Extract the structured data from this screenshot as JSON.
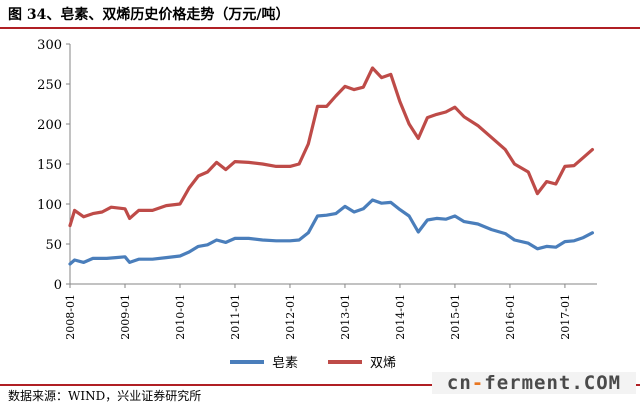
{
  "header": {
    "title": "图 34、皂素、双烯历史价格走势（万元/吨）"
  },
  "footer": {
    "source": "数据来源：WIND，兴业证券研究所"
  },
  "watermark": {
    "part1": "cn",
    "dash": "-",
    "part2": "ferment.COM"
  },
  "colors": {
    "rule": "#b01f24",
    "series_blue": "#4a7ebb",
    "series_red": "#be4b48"
  },
  "chart_data": {
    "type": "line",
    "title": "",
    "xlabel": "",
    "ylabel": "",
    "x_ticks": [
      "2008-01",
      "2009-01",
      "2010-01",
      "2011-01",
      "2012-01",
      "2013-01",
      "2014-01",
      "2015-01",
      "2016-01",
      "2017-01"
    ],
    "y_ticks": [
      "0",
      "50",
      "100",
      "150",
      "200",
      "250",
      "300"
    ],
    "ylim": [
      0,
      300
    ],
    "x_range": [
      "2008-01",
      "2017-08"
    ],
    "grid": false,
    "legend_position": "bottom",
    "series": [
      {
        "name": "皂素",
        "color": "#4a7ebb",
        "points": [
          [
            "2008-01",
            25
          ],
          [
            "2008-02",
            30
          ],
          [
            "2008-04",
            27
          ],
          [
            "2008-06",
            32
          ],
          [
            "2008-09",
            32
          ],
          [
            "2008-11",
            33
          ],
          [
            "2009-01",
            34
          ],
          [
            "2009-02",
            27
          ],
          [
            "2009-04",
            31
          ],
          [
            "2009-07",
            31
          ],
          [
            "2009-10",
            33
          ],
          [
            "2010-01",
            35
          ],
          [
            "2010-03",
            40
          ],
          [
            "2010-05",
            47
          ],
          [
            "2010-07",
            49
          ],
          [
            "2010-09",
            55
          ],
          [
            "2010-11",
            52
          ],
          [
            "2011-01",
            57
          ],
          [
            "2011-04",
            57
          ],
          [
            "2011-07",
            55
          ],
          [
            "2011-10",
            54
          ],
          [
            "2012-01",
            54
          ],
          [
            "2012-03",
            55
          ],
          [
            "2012-05",
            64
          ],
          [
            "2012-07",
            85
          ],
          [
            "2012-09",
            86
          ],
          [
            "2012-11",
            88
          ],
          [
            "2013-01",
            97
          ],
          [
            "2013-03",
            90
          ],
          [
            "2013-05",
            94
          ],
          [
            "2013-07",
            105
          ],
          [
            "2013-09",
            101
          ],
          [
            "2013-11",
            102
          ],
          [
            "2014-01",
            93
          ],
          [
            "2014-03",
            85
          ],
          [
            "2014-05",
            65
          ],
          [
            "2014-07",
            80
          ],
          [
            "2014-09",
            82
          ],
          [
            "2014-11",
            81
          ],
          [
            "2015-01",
            85
          ],
          [
            "2015-03",
            78
          ],
          [
            "2015-06",
            75
          ],
          [
            "2015-09",
            68
          ],
          [
            "2015-12",
            63
          ],
          [
            "2016-02",
            55
          ],
          [
            "2016-05",
            51
          ],
          [
            "2016-07",
            44
          ],
          [
            "2016-09",
            47
          ],
          [
            "2016-11",
            46
          ],
          [
            "2017-01",
            53
          ],
          [
            "2017-03",
            54
          ],
          [
            "2017-05",
            58
          ],
          [
            "2017-07",
            64
          ]
        ]
      },
      {
        "name": "双烯",
        "color": "#be4b48",
        "points": [
          [
            "2008-01",
            73
          ],
          [
            "2008-02",
            92
          ],
          [
            "2008-04",
            84
          ],
          [
            "2008-06",
            88
          ],
          [
            "2008-08",
            90
          ],
          [
            "2008-10",
            96
          ],
          [
            "2009-01",
            94
          ],
          [
            "2009-02",
            82
          ],
          [
            "2009-04",
            92
          ],
          [
            "2009-07",
            92
          ],
          [
            "2009-10",
            98
          ],
          [
            "2010-01",
            100
          ],
          [
            "2010-03",
            120
          ],
          [
            "2010-05",
            135
          ],
          [
            "2010-07",
            140
          ],
          [
            "2010-09",
            152
          ],
          [
            "2010-11",
            143
          ],
          [
            "2011-01",
            153
          ],
          [
            "2011-04",
            152
          ],
          [
            "2011-07",
            150
          ],
          [
            "2011-10",
            147
          ],
          [
            "2012-01",
            147
          ],
          [
            "2012-03",
            150
          ],
          [
            "2012-05",
            175
          ],
          [
            "2012-07",
            222
          ],
          [
            "2012-09",
            222
          ],
          [
            "2012-11",
            235
          ],
          [
            "2013-01",
            247
          ],
          [
            "2013-03",
            243
          ],
          [
            "2013-05",
            246
          ],
          [
            "2013-07",
            270
          ],
          [
            "2013-09",
            258
          ],
          [
            "2013-11",
            262
          ],
          [
            "2014-01",
            228
          ],
          [
            "2014-03",
            200
          ],
          [
            "2014-05",
            182
          ],
          [
            "2014-07",
            208
          ],
          [
            "2014-09",
            212
          ],
          [
            "2014-11",
            215
          ],
          [
            "2015-01",
            221
          ],
          [
            "2015-03",
            209
          ],
          [
            "2015-06",
            198
          ],
          [
            "2015-09",
            183
          ],
          [
            "2015-12",
            168
          ],
          [
            "2016-02",
            150
          ],
          [
            "2016-05",
            140
          ],
          [
            "2016-07",
            113
          ],
          [
            "2016-09",
            128
          ],
          [
            "2016-11",
            125
          ],
          [
            "2017-01",
            147
          ],
          [
            "2017-03",
            148
          ],
          [
            "2017-05",
            158
          ],
          [
            "2017-07",
            168
          ]
        ]
      }
    ]
  }
}
